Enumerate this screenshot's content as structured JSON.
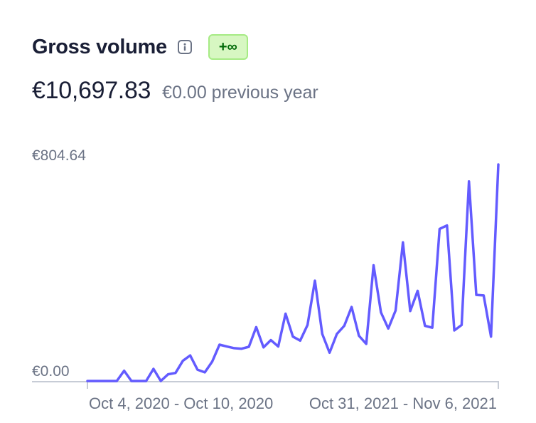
{
  "header": {
    "title": "Gross volume",
    "info_icon": "info-icon",
    "badge": "+∞"
  },
  "summary": {
    "current_value": "€10,697.83",
    "previous_value": "€0.00 previous year"
  },
  "colors": {
    "line": "#635bff",
    "axis_text": "#6b7385",
    "title": "#1a1f36",
    "badge_bg": "#d7f7c2",
    "badge_text": "#006908"
  },
  "chart_data": {
    "type": "line",
    "ymax_label": "€804.64",
    "ymin_label": "€0.00",
    "ylim": [
      0,
      804.64
    ],
    "x_start_label": "Oct 4, 2020 - Oct 10, 2020",
    "x_end_label": "Oct 31, 2021 - Nov 6, 2021",
    "grid": false,
    "values": [
      0,
      0,
      0,
      0,
      0,
      38,
      0,
      0,
      0,
      45,
      0,
      25,
      30,
      75,
      95,
      42,
      32,
      72,
      135,
      128,
      122,
      120,
      127,
      200,
      125,
      152,
      128,
      250,
      165,
      150,
      208,
      373,
      175,
      105,
      175,
      205,
      275,
      168,
      138,
      430,
      255,
      195,
      262,
      515,
      260,
      335,
      205,
      198,
      565,
      578,
      188,
      208,
      742,
      320,
      318,
      165,
      804.64
    ]
  }
}
